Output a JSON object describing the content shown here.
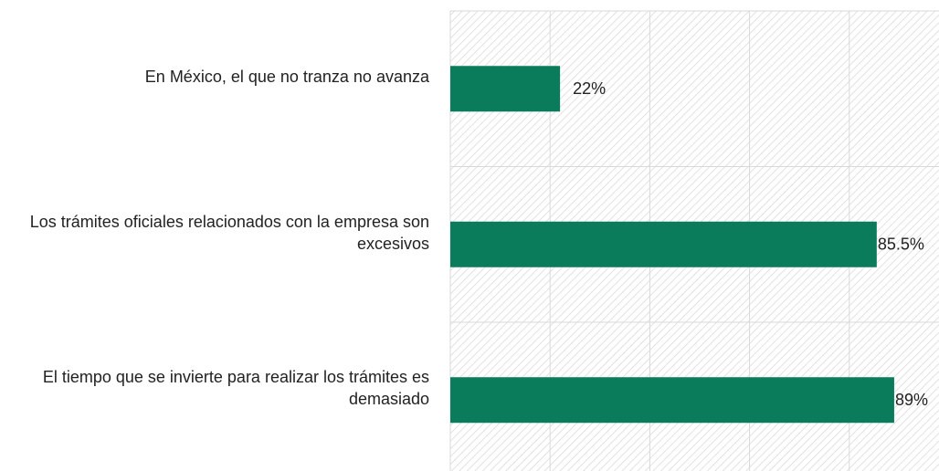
{
  "chart_data": {
    "type": "bar",
    "orientation": "horizontal",
    "categories": [
      "En México, el que no tranza no avanza",
      "Los trámites oficiales relacionados con la empresa son excesivos",
      "El tiempo que se invierte para realizar los trámites es demasiado"
    ],
    "values": [
      22,
      85.5,
      89
    ],
    "value_labels": [
      "22%",
      "85.5%",
      "89%"
    ],
    "color": "#0a7c5c",
    "xlim": [
      0,
      100
    ],
    "xticks": [
      0,
      20,
      40,
      60,
      80,
      100
    ],
    "grid": true
  }
}
